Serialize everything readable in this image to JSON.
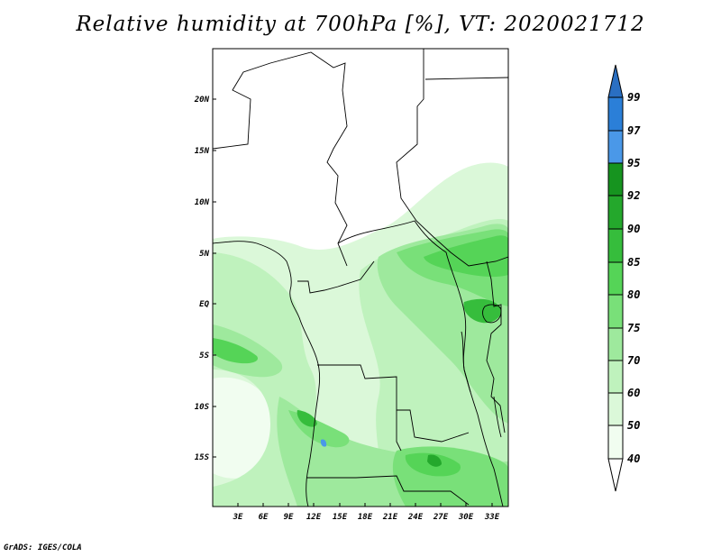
{
  "title": "Relative humidity at 700hPa [%], VT: 2020021712",
  "footer": "GrADS: IGES/COLA",
  "map": {
    "lat_labels": [
      "20N",
      "15N",
      "10N",
      "5N",
      "EQ",
      "5S",
      "10S",
      "15S"
    ],
    "lon_labels": [
      "3E",
      "6E",
      "9E",
      "12E",
      "15E",
      "18E",
      "21E",
      "24E",
      "27E",
      "30E",
      "33E"
    ],
    "region": "Central Africa"
  },
  "legend": {
    "labels": [
      "99",
      "97",
      "95",
      "92",
      "90",
      "85",
      "80",
      "75",
      "70",
      "60",
      "50",
      "40"
    ],
    "colors": {
      "c99": "#2a6fc2",
      "c97": "#2b7fd8",
      "c95": "#4a98e8",
      "c92": "#16941f",
      "c90": "#24a82c",
      "c85": "#36bd3c",
      "c80": "#55d457",
      "c75": "#79e079",
      "c70": "#9ee99d",
      "c60": "#bff2bd",
      "c50": "#dbf8d9",
      "c40": "#f1fdf0"
    }
  }
}
